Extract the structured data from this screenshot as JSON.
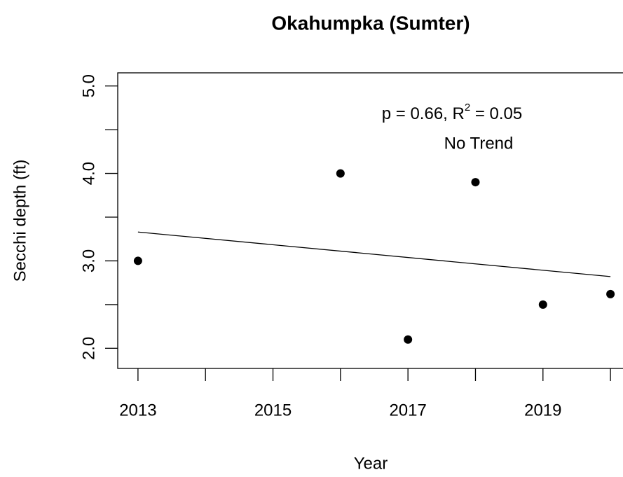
{
  "chart_data": {
    "type": "scatter",
    "title": "Okahumpka (Sumter)",
    "x_label": "Year",
    "y_label": "Secchi depth (ft)",
    "x": [
      2013,
      2016,
      2017,
      2018,
      2019,
      2020
    ],
    "values": [
      3.0,
      4.0,
      2.1,
      3.9,
      2.5,
      2.62
    ],
    "color": "#000000",
    "trend_line": {
      "x": [
        2013,
        2020
      ],
      "values": [
        3.33,
        2.82
      ]
    },
    "annotation": {
      "stat_text": "p = 0.66, R",
      "superscript": "2",
      "stat_text_end": " = 0.05",
      "trend_text": "No Trend"
    },
    "xlim": [
      2012.7,
      2020.3
    ],
    "ylim": [
      1.77,
      5.15
    ],
    "xticks": [
      2013,
      2015,
      2017,
      2019
    ],
    "xticks_unlabeled": [
      2014,
      2016,
      2018,
      2020
    ],
    "yticks": [
      {
        "value": 2,
        "label": "2.0"
      },
      {
        "value": 3,
        "label": "3.0"
      },
      {
        "value": 4,
        "label": "4.0"
      },
      {
        "value": 5,
        "label": "5.0"
      }
    ],
    "yticks_unlabeled": [
      2.5,
      3.5,
      4.5
    ]
  }
}
